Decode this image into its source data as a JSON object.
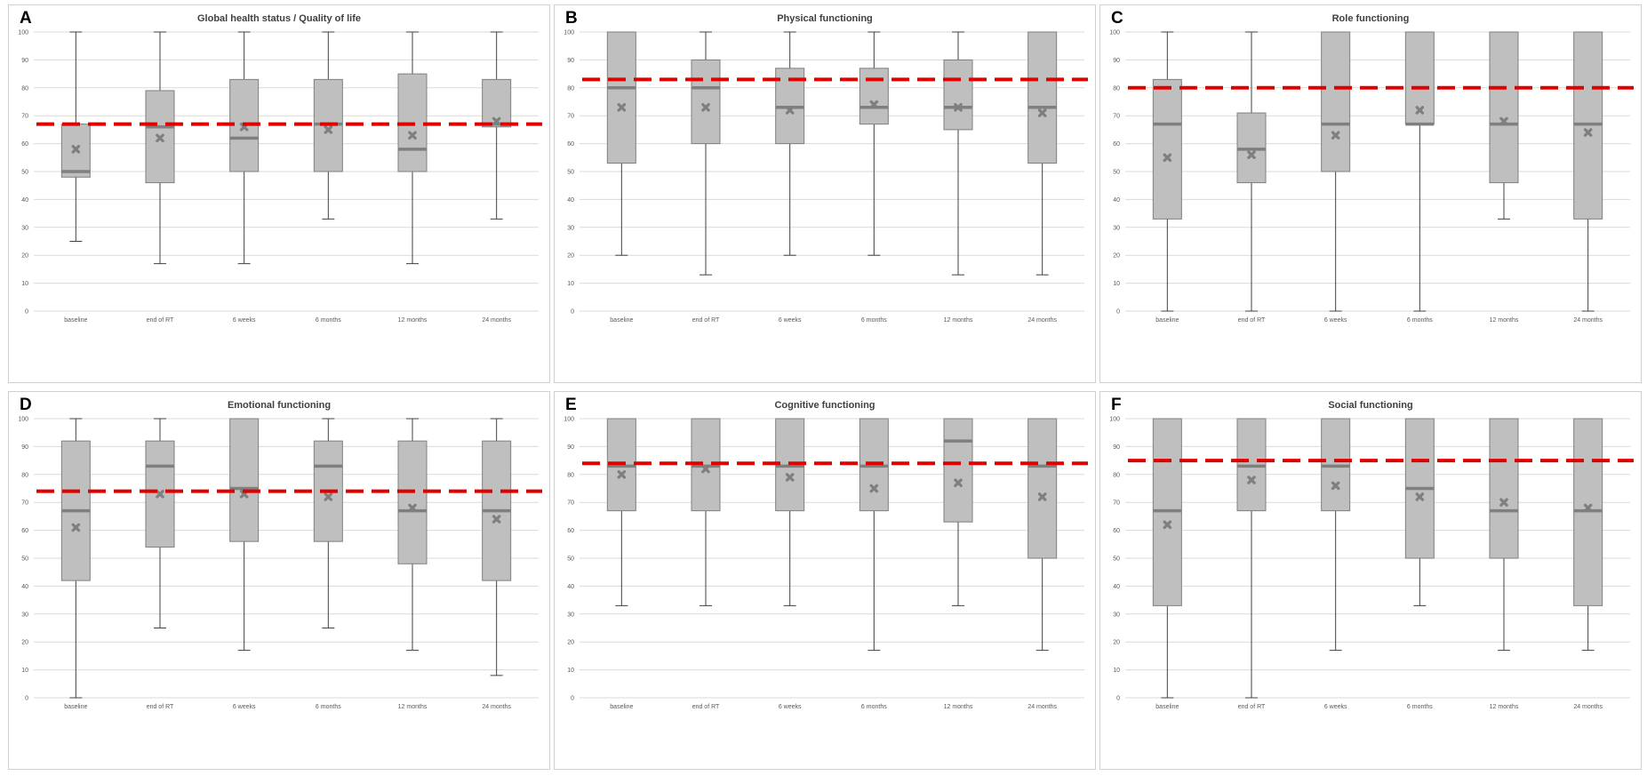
{
  "colors": {
    "box_fill": "#bfbfbf",
    "box_edge": "#7f7f7f",
    "median": "#7f7f7f",
    "mean_marker": "#7f7f7f",
    "reference_line": "#e00000",
    "grid": "#d9d9d9"
  },
  "chart_data": [
    {
      "panel": "A",
      "type": "boxplot",
      "title": "Global health status / Quality of life",
      "categories": [
        "baseline",
        "end of RT",
        "6 weeks",
        "6 months",
        "12 months",
        "24 months"
      ],
      "ylim": [
        0,
        100
      ],
      "yticks": [
        0,
        10,
        20,
        30,
        40,
        50,
        60,
        70,
        80,
        90,
        100
      ],
      "grid": true,
      "reference_line": 67,
      "boxes": [
        {
          "min": 25,
          "q1": 48,
          "median": 50,
          "q3": 67,
          "max": 100,
          "mean": 58
        },
        {
          "min": 17,
          "q1": 46,
          "median": 66,
          "q3": 79,
          "max": 100,
          "mean": 62
        },
        {
          "min": 17,
          "q1": 50,
          "median": 62,
          "q3": 83,
          "max": 100,
          "mean": 66
        },
        {
          "min": 33,
          "q1": 50,
          "median": 67,
          "q3": 83,
          "max": 100,
          "mean": 65
        },
        {
          "min": 17,
          "q1": 50,
          "median": 58,
          "q3": 85,
          "max": 100,
          "mean": 63
        },
        {
          "min": 33,
          "q1": 66,
          "median": 67,
          "q3": 83,
          "max": 100,
          "mean": 68
        }
      ]
    },
    {
      "panel": "B",
      "type": "boxplot",
      "title": "Physical functioning",
      "categories": [
        "baseline",
        "end of RT",
        "6 weeks",
        "6 months",
        "12 months",
        "24 months"
      ],
      "ylim": [
        0,
        100
      ],
      "yticks": [
        0,
        10,
        20,
        30,
        40,
        50,
        60,
        70,
        80,
        90,
        100
      ],
      "grid": true,
      "reference_line": 83,
      "boxes": [
        {
          "min": 20,
          "q1": 53,
          "median": 80,
          "q3": 100,
          "max": 100,
          "mean": 73
        },
        {
          "min": 13,
          "q1": 60,
          "median": 80,
          "q3": 90,
          "max": 100,
          "mean": 73
        },
        {
          "min": 20,
          "q1": 60,
          "median": 73,
          "q3": 87,
          "max": 100,
          "mean": 72
        },
        {
          "min": 20,
          "q1": 67,
          "median": 73,
          "q3": 87,
          "max": 100,
          "mean": 74
        },
        {
          "min": 13,
          "q1": 65,
          "median": 73,
          "q3": 90,
          "max": 100,
          "mean": 73
        },
        {
          "min": 13,
          "q1": 53,
          "median": 73,
          "q3": 100,
          "max": 100,
          "mean": 71
        }
      ]
    },
    {
      "panel": "C",
      "type": "boxplot",
      "title": "Role functioning",
      "categories": [
        "baseline",
        "end of RT",
        "6 weeks",
        "6 months",
        "12 months",
        "24 months"
      ],
      "ylim": [
        0,
        100
      ],
      "yticks": [
        0,
        10,
        20,
        30,
        40,
        50,
        60,
        70,
        80,
        90,
        100
      ],
      "grid": true,
      "reference_line": 80,
      "boxes": [
        {
          "min": 0,
          "q1": 33,
          "median": 67,
          "q3": 83,
          "max": 100,
          "mean": 55
        },
        {
          "min": 0,
          "q1": 46,
          "median": 58,
          "q3": 71,
          "max": 100,
          "mean": 56
        },
        {
          "min": 0,
          "q1": 50,
          "median": 67,
          "q3": 100,
          "max": 100,
          "mean": 63
        },
        {
          "min": 0,
          "q1": 67,
          "median": 67,
          "q3": 100,
          "max": 100,
          "mean": 72
        },
        {
          "min": 33,
          "q1": 46,
          "median": 67,
          "q3": 100,
          "max": 100,
          "mean": 68
        },
        {
          "min": 0,
          "q1": 33,
          "median": 67,
          "q3": 100,
          "max": 100,
          "mean": 64
        }
      ]
    },
    {
      "panel": "D",
      "type": "boxplot",
      "title": "Emotional functioning",
      "categories": [
        "baseline",
        "end of RT",
        "6 weeks",
        "6 months",
        "12 months",
        "24 months"
      ],
      "ylim": [
        0,
        100
      ],
      "yticks": [
        0,
        10,
        20,
        30,
        40,
        50,
        60,
        70,
        80,
        90,
        100
      ],
      "grid": true,
      "reference_line": 74,
      "boxes": [
        {
          "min": 0,
          "q1": 42,
          "median": 67,
          "q3": 92,
          "max": 100,
          "mean": 61
        },
        {
          "min": 25,
          "q1": 54,
          "median": 83,
          "q3": 92,
          "max": 100,
          "mean": 73
        },
        {
          "min": 17,
          "q1": 56,
          "median": 75,
          "q3": 100,
          "max": 100,
          "mean": 73
        },
        {
          "min": 25,
          "q1": 56,
          "median": 83,
          "q3": 92,
          "max": 100,
          "mean": 72
        },
        {
          "min": 17,
          "q1": 48,
          "median": 67,
          "q3": 92,
          "max": 100,
          "mean": 68
        },
        {
          "min": 8,
          "q1": 42,
          "median": 67,
          "q3": 92,
          "max": 100,
          "mean": 64
        }
      ]
    },
    {
      "panel": "E",
      "type": "boxplot",
      "title": "Cognitive functioning",
      "categories": [
        "baseline",
        "end of RT",
        "6 weeks",
        "6 months",
        "12 months",
        "24 months"
      ],
      "ylim": [
        0,
        100
      ],
      "yticks": [
        0,
        10,
        20,
        30,
        40,
        50,
        60,
        70,
        80,
        90,
        100
      ],
      "grid": true,
      "reference_line": 84,
      "boxes": [
        {
          "min": 33,
          "q1": 67,
          "median": 83,
          "q3": 100,
          "max": 100,
          "mean": 80
        },
        {
          "min": 33,
          "q1": 67,
          "median": 83,
          "q3": 100,
          "max": 100,
          "mean": 82
        },
        {
          "min": 33,
          "q1": 67,
          "median": 83,
          "q3": 100,
          "max": 100,
          "mean": 79
        },
        {
          "min": 17,
          "q1": 67,
          "median": 83,
          "q3": 100,
          "max": 100,
          "mean": 75
        },
        {
          "min": 33,
          "q1": 63,
          "median": 92,
          "q3": 100,
          "max": 100,
          "mean": 77
        },
        {
          "min": 17,
          "q1": 50,
          "median": 83,
          "q3": 100,
          "max": 100,
          "mean": 72
        }
      ]
    },
    {
      "panel": "F",
      "type": "boxplot",
      "title": "Social functioning",
      "categories": [
        "baseline",
        "end of RT",
        "6 weeks",
        "6 months",
        "12 months",
        "24 months"
      ],
      "ylim": [
        0,
        100
      ],
      "yticks": [
        0,
        10,
        20,
        30,
        40,
        50,
        60,
        70,
        80,
        90,
        100
      ],
      "grid": true,
      "reference_line": 85,
      "boxes": [
        {
          "min": 0,
          "q1": 33,
          "median": 67,
          "q3": 100,
          "max": 100,
          "mean": 62
        },
        {
          "min": 0,
          "q1": 67,
          "median": 83,
          "q3": 100,
          "max": 100,
          "mean": 78
        },
        {
          "min": 17,
          "q1": 67,
          "median": 83,
          "q3": 100,
          "max": 100,
          "mean": 76
        },
        {
          "min": 33,
          "q1": 50,
          "median": 75,
          "q3": 100,
          "max": 100,
          "mean": 72
        },
        {
          "min": 17,
          "q1": 50,
          "median": 67,
          "q3": 100,
          "max": 100,
          "mean": 70
        },
        {
          "min": 17,
          "q1": 33,
          "median": 67,
          "q3": 100,
          "max": 100,
          "mean": 68
        }
      ]
    }
  ]
}
